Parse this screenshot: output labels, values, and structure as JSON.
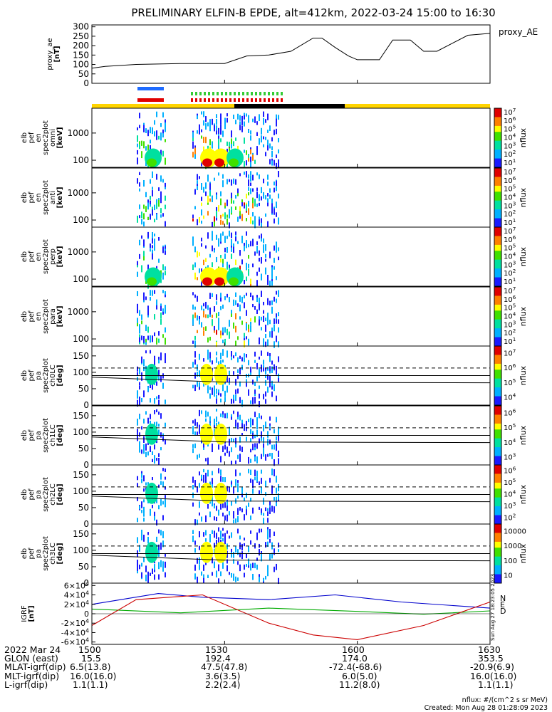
{
  "title": "PRELIMINARY ELFIN-B EPDE, alt=412km, 2022-03-24 15:00 to 16:30",
  "proxy_ae": {
    "label_lines": [
      "proxy_ae",
      "[nT]"
    ],
    "legend": "proxy_AE",
    "yticks": [
      "0",
      "50",
      "100",
      "150",
      "200",
      "250",
      "300"
    ],
    "ylim": [
      0,
      310
    ]
  },
  "spec_panels": [
    {
      "name": "omni",
      "label_lines": [
        "elb",
        "pef",
        "en",
        "spec2plot",
        "omni",
        "[keV]"
      ],
      "yticks": [
        "100",
        "1000"
      ],
      "cbar_ticks": [
        "10^7",
        "10^6",
        "10^5",
        "10^4",
        "10^3",
        "10^2",
        "10^1"
      ],
      "cbar_label": "nflux"
    },
    {
      "name": "anti",
      "label_lines": [
        "elb",
        "pef",
        "en",
        "spec2plot",
        "anti",
        "[keV]"
      ],
      "yticks": [
        "100",
        "1000"
      ],
      "cbar_ticks": [
        "10^7",
        "10^6",
        "10^5",
        "10^4",
        "10^3",
        "10^2",
        "10^1"
      ],
      "cbar_label": "nflux"
    },
    {
      "name": "perp",
      "label_lines": [
        "elb",
        "pef",
        "en",
        "spec2plot",
        "perp",
        "[keV]"
      ],
      "yticks": [
        "100",
        "1000"
      ],
      "cbar_ticks": [
        "10^7",
        "10^6",
        "10^5",
        "10^4",
        "10^3",
        "10^2",
        "10^1"
      ],
      "cbar_label": "nflux"
    },
    {
      "name": "para",
      "label_lines": [
        "elb",
        "pef",
        "en",
        "spec2plot",
        "para",
        "[keV]"
      ],
      "yticks": [
        "100",
        "1000"
      ],
      "cbar_ticks": [
        "10^7",
        "10^6",
        "10^5",
        "10^4",
        "10^3",
        "10^2",
        "10^1"
      ],
      "cbar_label": "nflux"
    }
  ],
  "pa_panels": [
    {
      "name": "ch0LC",
      "label_lines": [
        "elb",
        "pef",
        "pa",
        "spec2plot",
        "ch0LC",
        "[deg]"
      ],
      "yticks": [
        "0",
        "50",
        "100",
        "150"
      ],
      "cbar_ticks": [
        "10^7",
        "10^6",
        "10^5",
        "10^4"
      ],
      "cbar_label": "nflux"
    },
    {
      "name": "ch1LC",
      "label_lines": [
        "elb",
        "pef",
        "pa",
        "spec2plot",
        "ch1LC",
        "[deg]"
      ],
      "yticks": [
        "0",
        "50",
        "100",
        "150"
      ],
      "cbar_ticks": [
        "10^6",
        "10^5",
        "10^4",
        "10^3"
      ],
      "cbar_label": "nflux"
    },
    {
      "name": "ch2LC",
      "label_lines": [
        "elb",
        "pef",
        "pa",
        "spec2plot",
        "ch2LC",
        "[deg]"
      ],
      "yticks": [
        "0",
        "50",
        "100",
        "150"
      ],
      "cbar_ticks": [
        "10^6",
        "10^5",
        "10^4",
        "10^3",
        "10^2"
      ],
      "cbar_label": "nflux"
    },
    {
      "name": "ch3LC",
      "label_lines": [
        "elb",
        "pef",
        "pa",
        "spec2plot",
        "ch3LC",
        "[deg]"
      ],
      "yticks": [
        "0",
        "50",
        "100",
        "150"
      ],
      "cbar_ticks": [
        "10000",
        "1000",
        "100",
        "10"
      ],
      "cbar_label": "nflux"
    }
  ],
  "igrf": {
    "label_lines": [
      "IGRF",
      "[nT]"
    ],
    "yticks": [
      "-6×10^4",
      "-4×10^4",
      "-2×10^4",
      "0",
      "2×10^4",
      "4×10^4",
      "6×10^4"
    ],
    "legend": [
      "N",
      "E",
      "D"
    ],
    "colors": {
      "N": "#0000cc",
      "E": "#00aa00",
      "D": "#cc0000"
    },
    "side_text": "Sun Aug 27 18:23:05 2023"
  },
  "bottom_table": [
    {
      "label": "2022 Mar 24",
      "values": [
        "1500",
        "1530",
        "1600",
        "1630"
      ]
    },
    {
      "label": "GLON (east)",
      "values": [
        "15.5",
        "192.4",
        "174.0",
        "353.5"
      ]
    },
    {
      "label": "MLAT-igrf(dip)",
      "values": [
        "6.5(13.8)",
        "47.5(47.8)",
        "-72.4(-68.6)",
        "-20.9(6.9)"
      ]
    },
    {
      "label": "MLT-igrf(dip)",
      "values": [
        "16.0(16.0)",
        "3.6(3.5)",
        "6.0(5.0)",
        "16.0(16.0)"
      ]
    },
    {
      "label": "L-igrf(dip)",
      "values": [
        "1.1(1.1)",
        "2.2(2.4)",
        "11.2(8.0)",
        "1.1(1.1)"
      ]
    }
  ],
  "footer": {
    "units": "nflux: #/(cm^2 s sr MeV)",
    "created": "Created: Mon Aug 28 01:28:09 2023"
  },
  "chart_data": [
    {
      "type": "line",
      "title": "proxy_AE",
      "x_unit": "minutes after 15:00",
      "x": [
        0,
        3,
        10,
        20,
        30,
        35,
        40,
        45,
        50,
        52,
        55,
        58,
        60,
        65,
        68,
        72,
        75,
        78,
        85,
        90
      ],
      "values": [
        80,
        90,
        100,
        105,
        105,
        145,
        150,
        170,
        240,
        240,
        190,
        145,
        125,
        125,
        230,
        230,
        170,
        170,
        255,
        265
      ],
      "ylim": [
        0,
        310
      ]
    },
    {
      "type": "line",
      "title": "IGRF",
      "x_unit": "minutes after 15:00",
      "series": [
        {
          "name": "N",
          "x": [
            0,
            15,
            25,
            40,
            55,
            70,
            90
          ],
          "values": [
            20000,
            43000,
            35000,
            30000,
            40000,
            25000,
            12000
          ]
        },
        {
          "name": "E",
          "x": [
            0,
            20,
            40,
            60,
            75,
            90
          ],
          "values": [
            10000,
            2000,
            12000,
            5000,
            -1000,
            6000
          ]
        },
        {
          "name": "D",
          "x": [
            0,
            10,
            25,
            40,
            50,
            60,
            75,
            90
          ],
          "values": [
            -25000,
            30000,
            40000,
            -20000,
            -45000,
            -55000,
            -25000,
            25000
          ]
        }
      ],
      "ylim": [
        -65000,
        65000
      ]
    }
  ]
}
